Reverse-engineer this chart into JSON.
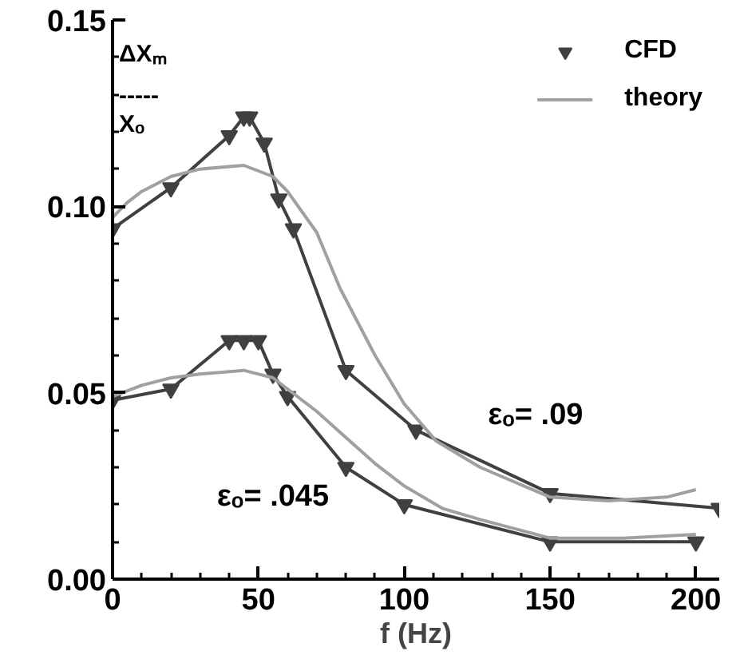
{
  "chart_data": {
    "type": "line",
    "xlabel": "f (Hz)",
    "ylabel": "ΔXₘ\n-----\nXₒ",
    "xlim": [
      0,
      208
    ],
    "ylim": [
      0,
      0.15
    ],
    "xticks": [
      0,
      50,
      100,
      150,
      200
    ],
    "yticks": [
      {
        "value": 0,
        "label": "0.00"
      },
      {
        "value": 0.05,
        "label": "0.05"
      },
      {
        "value": 0.1,
        "label": "0.10"
      },
      {
        "value": 0.15,
        "label": "0.15"
      }
    ],
    "grid": false,
    "legend": "top right",
    "series": [
      {
        "name": "CFD",
        "color": "#404040",
        "marker": "triangle",
        "x": [
          0,
          20,
          40,
          45,
          47,
          52,
          57,
          62,
          80,
          104,
          150,
          208
        ],
        "values": [
          0.094,
          0.105,
          0.119,
          0.124,
          0.124,
          0.117,
          0.102,
          0.094,
          0.056,
          0.04,
          0.023,
          0.019
        ]
      },
      {
        "color": "#404040",
        "marker": "triangle",
        "x": [
          0,
          20,
          40,
          45,
          50,
          55,
          60,
          80,
          100,
          150,
          200
        ],
        "values": [
          0.048,
          0.051,
          0.064,
          0.064,
          0.064,
          0.055,
          0.049,
          0.03,
          0.02,
          0.01,
          0.01
        ]
      },
      {
        "name": "theory",
        "color": "#a0a0a0",
        "marker": "none",
        "x": [
          0,
          5,
          10,
          20,
          30,
          45,
          55,
          60,
          70,
          78,
          90,
          100,
          111,
          126,
          150,
          170,
          190,
          200
        ],
        "values": [
          0.097,
          0.101,
          0.104,
          0.108,
          0.11,
          0.111,
          0.108,
          0.104,
          0.093,
          0.078,
          0.06,
          0.047,
          0.037,
          0.03,
          0.022,
          0.021,
          0.022,
          0.024
        ]
      },
      {
        "color": "#a0a0a0",
        "marker": "none",
        "x": [
          0,
          10,
          20,
          30,
          45,
          55,
          60,
          70,
          80,
          90,
          100,
          113,
          126,
          150,
          175,
          200
        ],
        "values": [
          0.049,
          0.052,
          0.054,
          0.055,
          0.056,
          0.054,
          0.051,
          0.045,
          0.038,
          0.031,
          0.025,
          0.019,
          0.016,
          0.011,
          0.011,
          0.012
        ]
      }
    ],
    "annotations": [
      "εₒ= .09",
      "εₒ= .045"
    ]
  }
}
